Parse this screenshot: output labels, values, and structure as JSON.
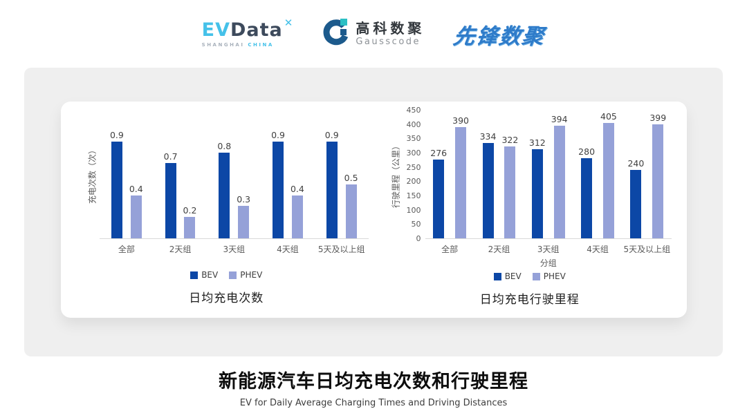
{
  "header": {
    "evdata": {
      "ev": "EV",
      "data": "Data",
      "spark": "✕",
      "sub_left": "SHANGHAI",
      "sub_right": "CHINA"
    },
    "gausscode": {
      "cn": "高科数聚",
      "en": "Gausscode"
    },
    "xianfeng": {
      "text": "先锋数聚"
    }
  },
  "colors": {
    "bev": "#0C47A6",
    "phev": "#95A1D8",
    "axis_line": "#D9D9D9",
    "tick_text": "#595959",
    "panel_bg": "#EFEFEF"
  },
  "chart_data": [
    {
      "type": "bar",
      "title": "日均充电次数",
      "categories": [
        "全部",
        "2天组",
        "3天组",
        "4天组",
        "5天及以上组"
      ],
      "series": [
        {
          "name": "BEV",
          "color": "#0C47A6",
          "values": [
            0.9,
            0.7,
            0.8,
            0.9,
            0.9
          ]
        },
        {
          "name": "PHEV",
          "color": "#95A1D8",
          "values": [
            0.4,
            0.2,
            0.3,
            0.4,
            0.5
          ]
        }
      ],
      "ylabel": "充电次数（次）",
      "xlabel": "",
      "ylim": [
        0,
        1.2
      ],
      "yticks": [],
      "show_ytick_labels": false,
      "value_label_decimals": 1,
      "grid": false,
      "legend_position": "bottom"
    },
    {
      "type": "bar",
      "title": "日均充电行驶里程",
      "categories": [
        "全部",
        "2天组",
        "3天组",
        "4天组",
        "5天及以上组"
      ],
      "series": [
        {
          "name": "BEV",
          "color": "#0C47A6",
          "values": [
            276,
            334,
            312,
            280,
            240
          ]
        },
        {
          "name": "PHEV",
          "color": "#95A1D8",
          "values": [
            390,
            322,
            394,
            405,
            399
          ]
        }
      ],
      "ylabel": "行驶里程（公里）",
      "xlabel": "分组",
      "ylim": [
        0,
        450
      ],
      "yticks": [
        0,
        50,
        100,
        150,
        200,
        250,
        300,
        350,
        400,
        450
      ],
      "show_ytick_labels": true,
      "value_label_decimals": 0,
      "grid": false,
      "legend_position": "bottom"
    }
  ],
  "footer": {
    "title": "新能源汽车日均充电次数和行驶里程",
    "subtitle": "EV for Daily Average Charging Times and Driving Distances"
  }
}
